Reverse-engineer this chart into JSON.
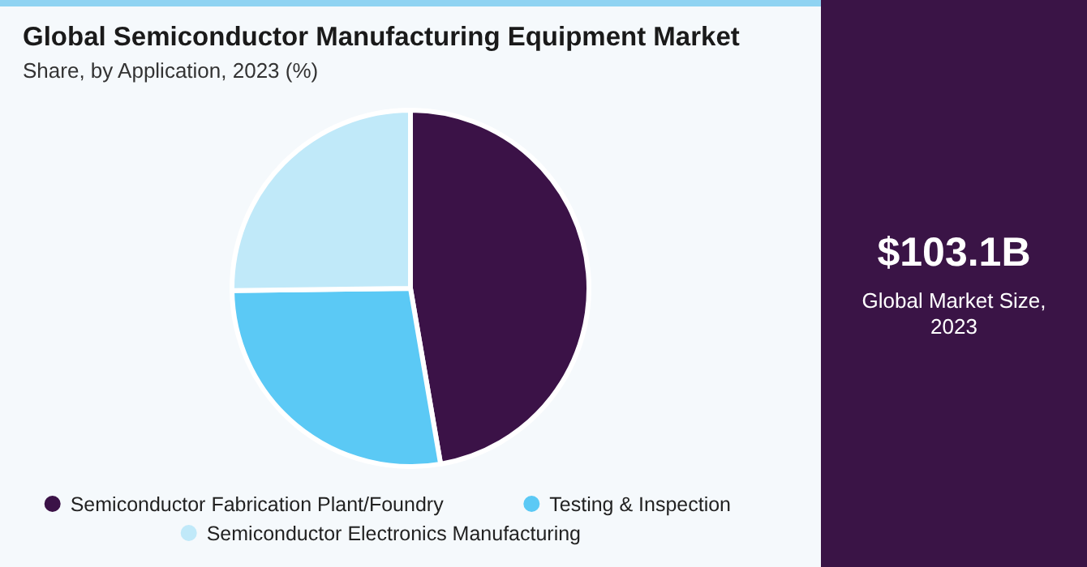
{
  "chart_data": {
    "type": "pie",
    "title": "Global Semiconductor Manufacturing Equipment Market",
    "subtitle": "Share, by Application, 2023 (%)",
    "categories": [
      "Semiconductor Fabrication Plant/Foundry",
      "Testing & Inspection",
      "Semiconductor Electronics Manufacturing"
    ],
    "values": [
      47.3,
      27.5,
      25.2
    ],
    "colors": [
      "#3b1247",
      "#5bc9f5",
      "#c0e9f9"
    ],
    "legend": "bottom",
    "annotations": [
      "$103.1B",
      "Global Market Size, 2023"
    ]
  }
}
